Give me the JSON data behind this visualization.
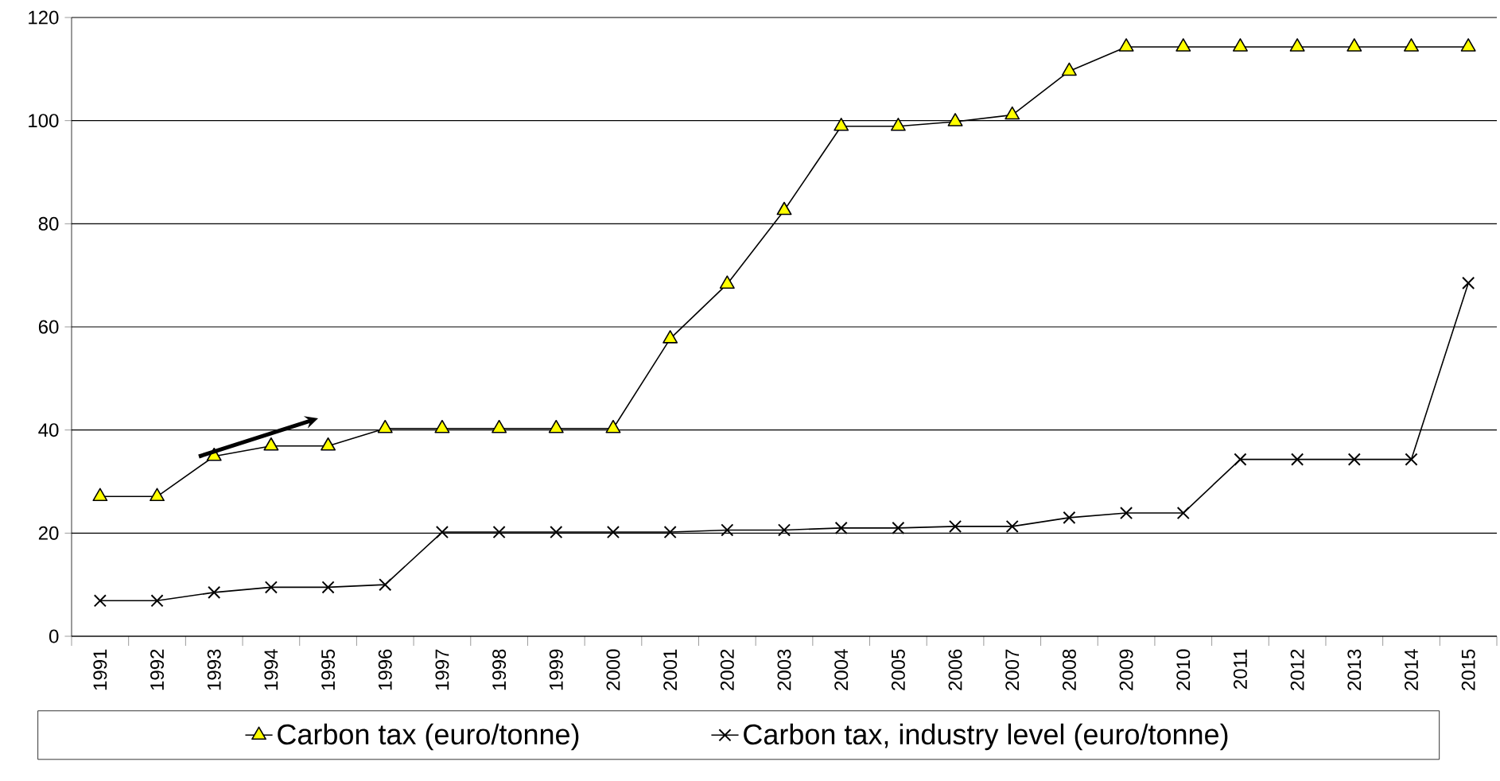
{
  "chart_data": {
    "type": "line",
    "categories": [
      "1991",
      "1992",
      "1993",
      "1994",
      "1995",
      "1996",
      "1997",
      "1998",
      "1999",
      "2000",
      "2001",
      "2002",
      "2003",
      "2004",
      "2005",
      "2006",
      "2007",
      "2008",
      "2009",
      "2010",
      "2011",
      "2012",
      "2013",
      "2014",
      "2015"
    ],
    "series": [
      {
        "name": "Carbon tax (euro/tonne)",
        "color": "#ffff00",
        "marker": "triangle",
        "values": [
          27.1,
          27.1,
          34.9,
          36.9,
          36.9,
          40.3,
          40.3,
          40.3,
          40.3,
          40.3,
          57.7,
          68.3,
          82.6,
          98.9,
          98.9,
          99.8,
          101.1,
          109.6,
          114.3,
          114.3,
          114.3,
          114.3,
          114.3,
          114.3,
          114.3
        ]
      },
      {
        "name": "Carbon tax, industry level (euro/tonne)",
        "color": "#000000",
        "marker": "cross",
        "values": [
          6.9,
          6.9,
          8.5,
          9.5,
          9.5,
          10.0,
          20.2,
          20.2,
          20.2,
          20.2,
          20.2,
          20.6,
          20.6,
          21.0,
          21.0,
          21.3,
          21.3,
          23.0,
          23.9,
          23.9,
          34.3,
          34.3,
          34.3,
          34.3,
          68.5
        ]
      }
    ],
    "ylim": [
      0,
      120
    ],
    "yticks": [
      0,
      20,
      40,
      60,
      80,
      100,
      120
    ],
    "grid": "y",
    "legend": "bottom",
    "line_style": "solid"
  }
}
